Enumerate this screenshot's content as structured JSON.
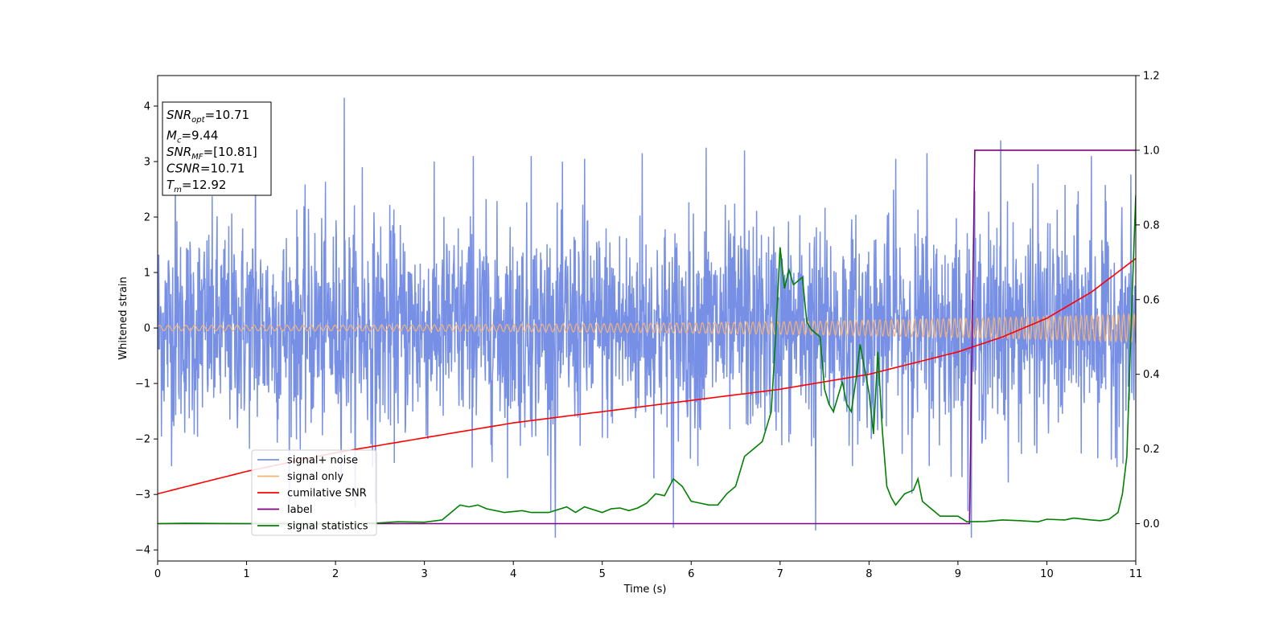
{
  "chart_data": {
    "type": "line",
    "xlabel": "Time (s)",
    "ylabel_left": "Whitened strain",
    "ylabel_right": "",
    "xlim": [
      0,
      11
    ],
    "ylim_left": [
      -4.2,
      4.55
    ],
    "ylim_right": [
      -0.1,
      1.2
    ],
    "x_ticks": [
      0,
      1,
      2,
      3,
      4,
      5,
      6,
      7,
      8,
      9,
      10,
      11
    ],
    "y_ticks_left": [
      -4,
      -3,
      -2,
      -1,
      0,
      1,
      2,
      3,
      4
    ],
    "y_ticks_right": [
      0.0,
      0.2,
      0.4,
      0.6,
      0.8,
      1.0,
      1.2
    ],
    "grid": false,
    "legend_position": "lower-left",
    "info_box": [
      {
        "sym": "SNR",
        "sub": "opt",
        "text": "=10.71"
      },
      {
        "sym": "M",
        "sub": "c",
        "text": "=9.44"
      },
      {
        "sym": "SNR",
        "sub": "MF",
        "text": "=[10.81]"
      },
      {
        "sym": "CSNR",
        "sub": "",
        "text": "=10.71"
      },
      {
        "sym": "T",
        "sub": "m",
        "text": "=12.92"
      }
    ],
    "series": [
      {
        "name": "signal+ noise",
        "axis": "left",
        "color": "#7790e6",
        "kind": "noise",
        "amplitude_std": 0.95,
        "extremes": [
          [
            2.1,
            4.15
          ],
          [
            4.47,
            -3.78
          ],
          [
            0.2,
            3.05
          ],
          [
            1.1,
            3.1
          ],
          [
            2.3,
            2.9
          ],
          [
            2.45,
            -3.15
          ],
          [
            3.55,
            3.1
          ],
          [
            4.2,
            3.1
          ],
          [
            4.8,
            3.05
          ],
          [
            5.45,
            3.15
          ],
          [
            5.8,
            -3.6
          ],
          [
            6.17,
            3.25
          ],
          [
            6.6,
            3.2
          ],
          [
            7.4,
            -3.65
          ],
          [
            8.3,
            3.05
          ],
          [
            8.65,
            3.15
          ],
          [
            9.15,
            -3.78
          ],
          [
            9.48,
            3.38
          ],
          [
            9.9,
            2.95
          ],
          [
            10.5,
            3.1
          ]
        ]
      },
      {
        "name": "signal only",
        "axis": "left",
        "color": "#f5b274",
        "kind": "chirp",
        "amp_start": 0.05,
        "amp_end": 0.25,
        "cycles_per_sec_start": 10,
        "cycles_per_sec_end": 17
      },
      {
        "name": "cumilative SNR",
        "axis": "right",
        "color": "#ff0000",
        "kind": "line",
        "x": [
          0,
          1,
          2,
          3,
          4,
          5,
          6,
          7,
          8,
          9,
          9.5,
          10,
          10.5,
          11
        ],
        "y": [
          0.08,
          0.14,
          0.19,
          0.23,
          0.27,
          0.3,
          0.33,
          0.36,
          0.4,
          0.46,
          0.5,
          0.55,
          0.62,
          0.71
        ]
      },
      {
        "name": "label",
        "axis": "right",
        "color": "#800080",
        "kind": "line",
        "x": [
          0,
          9.13,
          9.19,
          11
        ],
        "y": [
          0,
          0,
          1,
          1
        ]
      },
      {
        "name": "signal statistics",
        "axis": "right",
        "color": "#008000",
        "kind": "line",
        "x": [
          0,
          0.3,
          1,
          2,
          2.5,
          2.7,
          3,
          3.2,
          3.4,
          3.5,
          3.6,
          3.7,
          3.9,
          4.1,
          4.2,
          4.4,
          4.6,
          4.7,
          4.8,
          5.0,
          5.1,
          5.2,
          5.3,
          5.4,
          5.5,
          5.6,
          5.7,
          5.8,
          5.9,
          6.0,
          6.1,
          6.2,
          6.3,
          6.4,
          6.5,
          6.6,
          6.7,
          6.8,
          6.9,
          6.95,
          7.0,
          7.05,
          7.1,
          7.15,
          7.25,
          7.3,
          7.35,
          7.45,
          7.5,
          7.55,
          7.6,
          7.7,
          7.75,
          7.8,
          7.85,
          7.9,
          8.0,
          8.05,
          8.1,
          8.15,
          8.2,
          8.25,
          8.3,
          8.4,
          8.5,
          8.55,
          8.6,
          8.7,
          8.8,
          9.0,
          9.1,
          9.3,
          9.5,
          9.7,
          9.9,
          10.0,
          10.2,
          10.3,
          10.5,
          10.6,
          10.7,
          10.8,
          10.85,
          10.9,
          10.95,
          11.0
        ],
        "y": [
          0,
          0.001,
          0,
          0,
          0.002,
          0.005,
          0.004,
          0.01,
          0.05,
          0.045,
          0.05,
          0.04,
          0.03,
          0.035,
          0.03,
          0.03,
          0.045,
          0.03,
          0.045,
          0.03,
          0.04,
          0.042,
          0.035,
          0.042,
          0.055,
          0.08,
          0.075,
          0.12,
          0.1,
          0.06,
          0.055,
          0.05,
          0.05,
          0.08,
          0.1,
          0.18,
          0.2,
          0.22,
          0.3,
          0.5,
          0.74,
          0.63,
          0.68,
          0.64,
          0.66,
          0.54,
          0.52,
          0.5,
          0.36,
          0.32,
          0.3,
          0.38,
          0.32,
          0.3,
          0.38,
          0.48,
          0.35,
          0.24,
          0.46,
          0.25,
          0.1,
          0.07,
          0.05,
          0.08,
          0.09,
          0.12,
          0.06,
          0.04,
          0.02,
          0.02,
          0.005,
          0.006,
          0.01,
          0.008,
          0.005,
          0.012,
          0.01,
          0.015,
          0.01,
          0.008,
          0.012,
          0.03,
          0.08,
          0.18,
          0.55,
          0.88
        ]
      }
    ]
  }
}
